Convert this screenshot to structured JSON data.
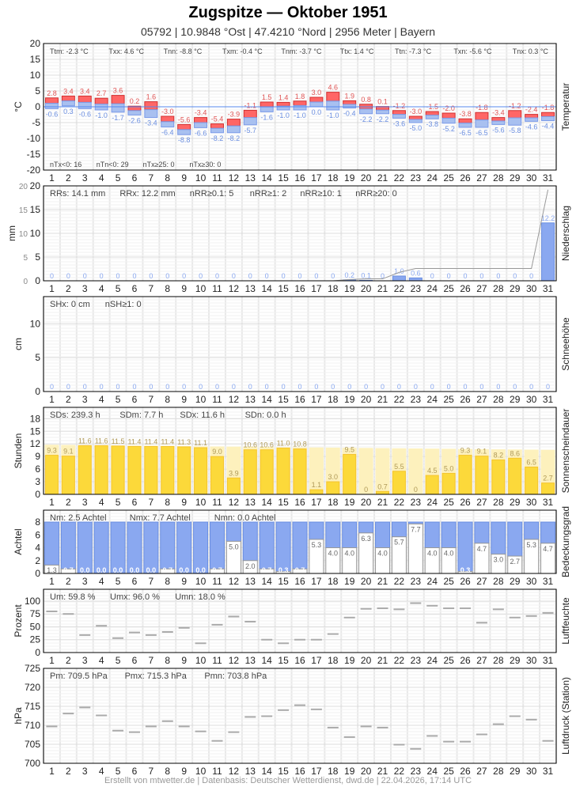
{
  "header": {
    "title": "Zugspitze  —  Oktober 1951",
    "subtitle": "05792  |  10.9848 °Ost  |  47.4210 °Nord  |  2956 Meter  |  Bayern"
  },
  "footer": "Erstellt von mtwetter.de | Datenbasis: Deutscher Wetterdienst, dwd.de | 22.04.2026, 17:14 UTC",
  "colors": {
    "tmax": "#ff6666",
    "tmin": "#a8c0f0",
    "zero_line": "#5588ee",
    "precip": "#8aa8f0",
    "sun": "#fcd93a",
    "sun_possible": "#fdf1bd",
    "cloud": "#8aa8f0",
    "dash": "#aaaaaa"
  },
  "chart_data": [
    {
      "id": "temperature",
      "type": "bar",
      "ylabel": "°C",
      "side_label": "Temperatur",
      "ylim": [
        -20,
        20
      ],
      "yticks": [
        "20",
        "15",
        "10",
        "5",
        "0",
        "-5",
        "-10",
        "-15",
        "-20"
      ],
      "categories": [
        "1",
        "2",
        "3",
        "4",
        "5",
        "6",
        "7",
        "8",
        "9",
        "10",
        "11",
        "12",
        "13",
        "14",
        "15",
        "16",
        "17",
        "18",
        "19",
        "20",
        "21",
        "22",
        "23",
        "24",
        "25",
        "26",
        "27",
        "28",
        "29",
        "30",
        "31"
      ],
      "stats_top": [
        "Ttm: -2.3 °C",
        "Txx: 4.6 °C",
        "Tnn: -8.8 °C",
        "Txm: -0.4 °C",
        "Tnm: -3.7 °C",
        "Ttx: 1.4 °C",
        "Ttn: -7.3 °C",
        "Txn: -5.6 °C",
        "Tnx: 0.3 °C"
      ],
      "stats_bottom": [
        "nTx<0: 16",
        "nTn<0: 29",
        "nTx≥25: 0",
        "nTx≥30: 0"
      ],
      "series": [
        {
          "key": "tmax",
          "values": [
            2.8,
            3.4,
            3.4,
            2.7,
            3.6,
            0.2,
            1.6,
            -3.0,
            -5.6,
            -3.4,
            -5.4,
            -3.9,
            -1.1,
            1.5,
            1.4,
            1.8,
            3.0,
            4.6,
            1.9,
            0.8,
            0.1,
            -1.2,
            -3.0,
            -1.5,
            -2.0,
            -3.8,
            -1.8,
            -3.4,
            -1.2,
            -2.4,
            -1.8
          ]
        },
        {
          "key": "tmin",
          "values": [
            -0.6,
            0.3,
            -0.6,
            -1.0,
            -1.7,
            -2.6,
            -3.4,
            -6.4,
            -8.8,
            -6.6,
            -8.2,
            -8.2,
            -5.7,
            -1.6,
            -1.0,
            -1.0,
            0.0,
            -1.0,
            -0.4,
            -2.2,
            -2.2,
            -3.6,
            -5.0,
            -3.8,
            -5.2,
            -6.5,
            -6.5,
            -5.6,
            -5.8,
            -4.6,
            -4.4
          ]
        }
      ]
    },
    {
      "id": "precipitation",
      "type": "bar",
      "ylabel": "mm",
      "side_label": "Niederschlag",
      "ylim": [
        0,
        20
      ],
      "yticks": [
        "20",
        "15",
        "10",
        "5",
        "0"
      ],
      "stats_top": [
        "RRs: 14.1 mm",
        "RRx: 12.2 mm",
        "nRR≥0.1: 5",
        "nRR≥1: 2",
        "nRR≥10: 1",
        "nRR≥20: 0"
      ],
      "values": [
        0,
        0,
        0,
        0,
        0,
        0,
        0,
        0,
        0,
        0,
        0,
        0,
        0,
        0,
        0,
        0,
        0,
        0,
        0.2,
        0.1,
        0,
        1.0,
        0.6,
        0,
        0,
        0,
        0,
        0,
        0,
        0,
        12.2
      ],
      "labels": [
        "0",
        "0",
        "0",
        "0",
        "0",
        "0",
        "0",
        "0",
        "0",
        "0",
        "0",
        "0",
        "0",
        "0",
        "0",
        "0",
        "0",
        "0",
        "0.2",
        "0.1",
        "0",
        "1.0",
        "0.6",
        "0",
        "0",
        "0",
        "0",
        "0",
        "0",
        "0",
        "12.2"
      ],
      "cumulative_line": true
    },
    {
      "id": "snow",
      "type": "bar",
      "ylabel": "cm",
      "side_label": "Schneehöhe",
      "ylim": [
        0,
        14
      ],
      "yticks": [
        "10",
        "5",
        "0"
      ],
      "stats_top": [
        "SHx: 0 cm",
        "nSH≥1: 0"
      ],
      "values": [
        0,
        0,
        0,
        0,
        0,
        0,
        0,
        0,
        0,
        0,
        0,
        0,
        0,
        0,
        0,
        0,
        0,
        0,
        0,
        0,
        0,
        0,
        0,
        0,
        0,
        0,
        0,
        0,
        0,
        0,
        0
      ],
      "labels": [
        "0",
        "0",
        "0",
        "0",
        "0",
        "0",
        "0",
        "0",
        "0",
        "0",
        "0",
        "0",
        "0",
        "0",
        "0",
        "0",
        "0",
        "0",
        "0",
        "0",
        "0",
        "0",
        "0",
        "0",
        "0",
        "0",
        "0",
        "0",
        "0",
        "0",
        "0"
      ]
    },
    {
      "id": "sunshine",
      "type": "bar",
      "ylabel": "Stunden",
      "side_label": "Sonnenscheindauer",
      "ylim": [
        0,
        20.7
      ],
      "yticks": [
        "18",
        "15",
        "12",
        "9",
        "6",
        "3",
        "0"
      ],
      "stats_top": [
        "SDs: 239.3 h",
        "SDm: 7.7 h",
        "SDx: 11.6 h",
        "SDn: 0.0 h"
      ],
      "values": [
        9.3,
        9.1,
        11.6,
        11.6,
        11.5,
        11.4,
        11.4,
        11.4,
        11.3,
        11.1,
        9.0,
        3.9,
        10.6,
        10.6,
        11.0,
        10.8,
        1.1,
        3.0,
        9.5,
        0,
        0.7,
        5.5,
        0,
        4.5,
        5.0,
        9.3,
        9.1,
        8.2,
        8.6,
        6.5,
        2.7
      ],
      "labels": [
        "9.3",
        "9.1",
        "11.6",
        "11.6",
        "11.5",
        "11.4",
        "11.4",
        "11.4",
        "11.3",
        "11.1",
        "9.0",
        "3.9",
        "10.6",
        "10.6",
        "11.0",
        "10.8",
        "1.1",
        "3.0",
        "9.5",
        "0",
        "0.7",
        "5.5",
        "0",
        "4.5",
        "5.0",
        "9.3",
        "9.1",
        "8.2",
        "8.6",
        "6.5",
        "2.7"
      ]
    },
    {
      "id": "cloud_cover",
      "type": "bar",
      "ylabel": "Achtel",
      "side_label": "Bedeckungsgrad",
      "ylim": [
        0,
        9.85
      ],
      "yticks": [
        "8",
        "6",
        "4",
        "2",
        "0"
      ],
      "stats_top": [
        "Nm: 2.5 Achtel",
        "Nmx: 7.7 Achtel",
        "Nmn: 0.0 Achtel"
      ],
      "values": [
        1.3,
        0.7,
        0.0,
        0.0,
        0.0,
        0.0,
        0.0,
        0.7,
        0.0,
        0.0,
        0.7,
        5.0,
        2.0,
        0.7,
        0.3,
        0.7,
        5.3,
        4.0,
        4.0,
        6.3,
        4.0,
        5.7,
        7.7,
        4.0,
        4.0,
        0.3,
        4.7,
        3.0,
        2.7,
        5.3,
        4.7
      ],
      "labels": [
        "1.3",
        "0.7",
        "0.0",
        "0.0",
        "0.0",
        "0.0",
        "0.0",
        "0.7",
        "0.0",
        "0.0",
        "0.7",
        "5.0",
        "2.0",
        "0.7",
        "0.3",
        "0.7",
        "5.3",
        "4.0",
        "4.0",
        "6.3",
        "4.0",
        "5.7",
        "7.7",
        "4.0",
        "4.0",
        "0.3",
        "4.7",
        "3.0",
        "2.7",
        "5.3",
        "4.7"
      ]
    },
    {
      "id": "humidity",
      "type": "scatter",
      "ylabel": "Prozent",
      "side_label": "Luftfeuchte",
      "ylim": [
        0,
        123
      ],
      "yticks": [
        "100",
        "75",
        "50",
        "25",
        "0"
      ],
      "stats_top": [
        "Um: 59.8 %",
        "Umx: 96.0 %",
        "Umn: 18.0 %"
      ],
      "values": [
        80,
        75,
        34,
        52,
        28,
        39,
        34,
        40,
        48,
        18,
        54,
        70,
        60,
        25,
        18,
        25,
        25,
        36,
        68,
        85,
        86,
        84,
        96,
        91,
        86,
        86,
        58,
        84,
        68,
        71,
        77
      ]
    },
    {
      "id": "pressure",
      "type": "scatter",
      "ylabel": "hPa",
      "side_label": "Luftdruck (Station)",
      "ylim": [
        700,
        725
      ],
      "yticks": [
        "725",
        "720",
        "715",
        "710",
        "705",
        "700"
      ],
      "stats_top": [
        "Pm: 709.5 hPa",
        "Pmx: 715.3 hPa",
        "Pmn: 703.8 hPa"
      ],
      "values": [
        709.7,
        713.1,
        714.7,
        712.6,
        708.6,
        708.2,
        709.7,
        711.1,
        709.7,
        708.4,
        705.9,
        708.2,
        712.2,
        712.4,
        714.0,
        715.3,
        714.2,
        709.4,
        706.9,
        709.7,
        709.4,
        704.9,
        703.8,
        707.2,
        705.7,
        705.7,
        707.6,
        710.3,
        712.4,
        711.5,
        705.9
      ]
    }
  ]
}
